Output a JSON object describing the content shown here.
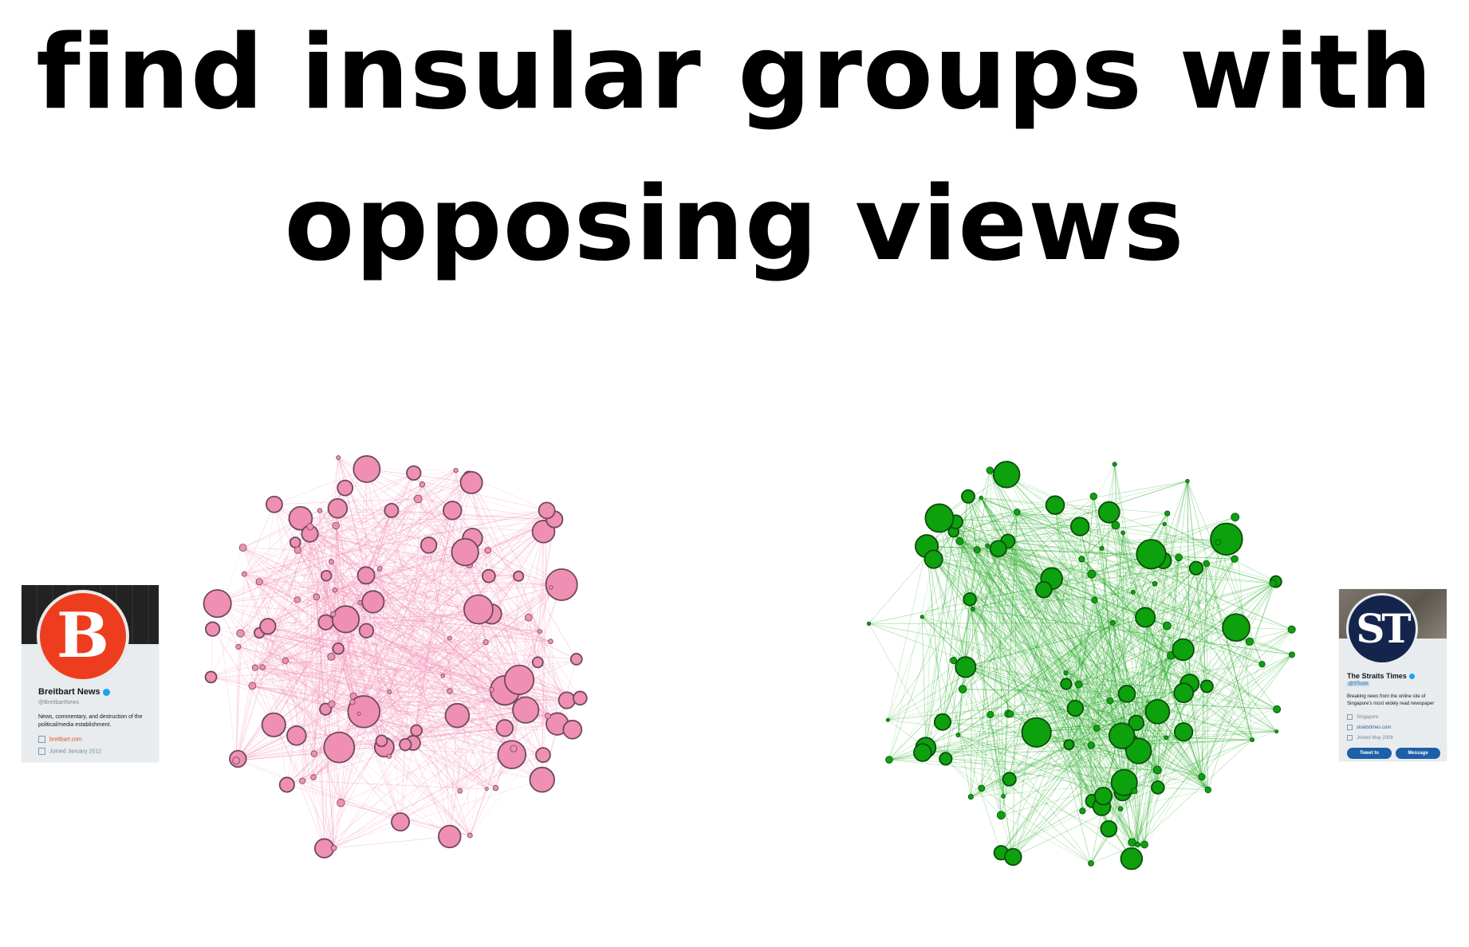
{
  "title": {
    "line1": "find insular groups with",
    "line2": "opposing views"
  },
  "left_profile": {
    "name": "Breitbart News",
    "handle": "@BreitbartNews",
    "bio": "News, commentary, and destruction of the political/media establishment.",
    "link": "breitbart.com",
    "joined": "Joined January 2012",
    "avatar_letter": "B",
    "verified_icon": "verified-badge-icon"
  },
  "right_profile": {
    "name": "The Straits Times",
    "handle": "@STcom",
    "bio": "Breaking news from the online site of Singapore's most widely read newspaper",
    "location": "Singapore",
    "link": "straitstimes.com",
    "joined": "Joined May 2008",
    "avatar_letters": "ST",
    "tweet_to_label": "Tweet to",
    "message_label": "Message",
    "verified_icon": "verified-badge-icon"
  },
  "graphs": {
    "left_color": "#f08fb4",
    "left_stroke": "#6e4a5a",
    "left_edge_color": "#f28bb2",
    "right_color": "#0da10d",
    "right_stroke": "#0b4d0b",
    "right_edge_color": "#1aa51a"
  }
}
